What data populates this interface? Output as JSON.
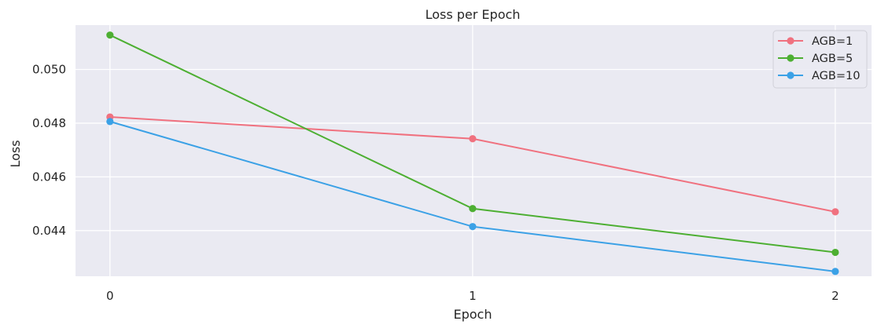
{
  "chart_data": {
    "type": "line",
    "title": "Loss per Epoch",
    "xlabel": "Epoch",
    "ylabel": "Loss",
    "x": [
      0,
      1,
      2
    ],
    "x_ticks": [
      "0",
      "1",
      "2"
    ],
    "xlim": [
      -0.095,
      2.1
    ],
    "ylim": [
      0.0423,
      0.05165
    ],
    "y_ticks": [
      0.044,
      0.046,
      0.048,
      0.05
    ],
    "y_tick_labels": [
      "0.044",
      "0.046",
      "0.048",
      "0.050"
    ],
    "grid": true,
    "legend_position": "top-right",
    "background_color": "#eaeaf2",
    "grid_color": "#ffffff",
    "series": [
      {
        "name": "AGB=1",
        "color": "#f0717f",
        "values": [
          0.04823,
          0.04742,
          0.0447
        ]
      },
      {
        "name": "AGB=5",
        "color": "#4daf32",
        "values": [
          0.05128,
          0.04482,
          0.04319
        ]
      },
      {
        "name": "AGB=10",
        "color": "#3ba1e6",
        "values": [
          0.04806,
          0.04415,
          0.04248
        ]
      }
    ]
  }
}
